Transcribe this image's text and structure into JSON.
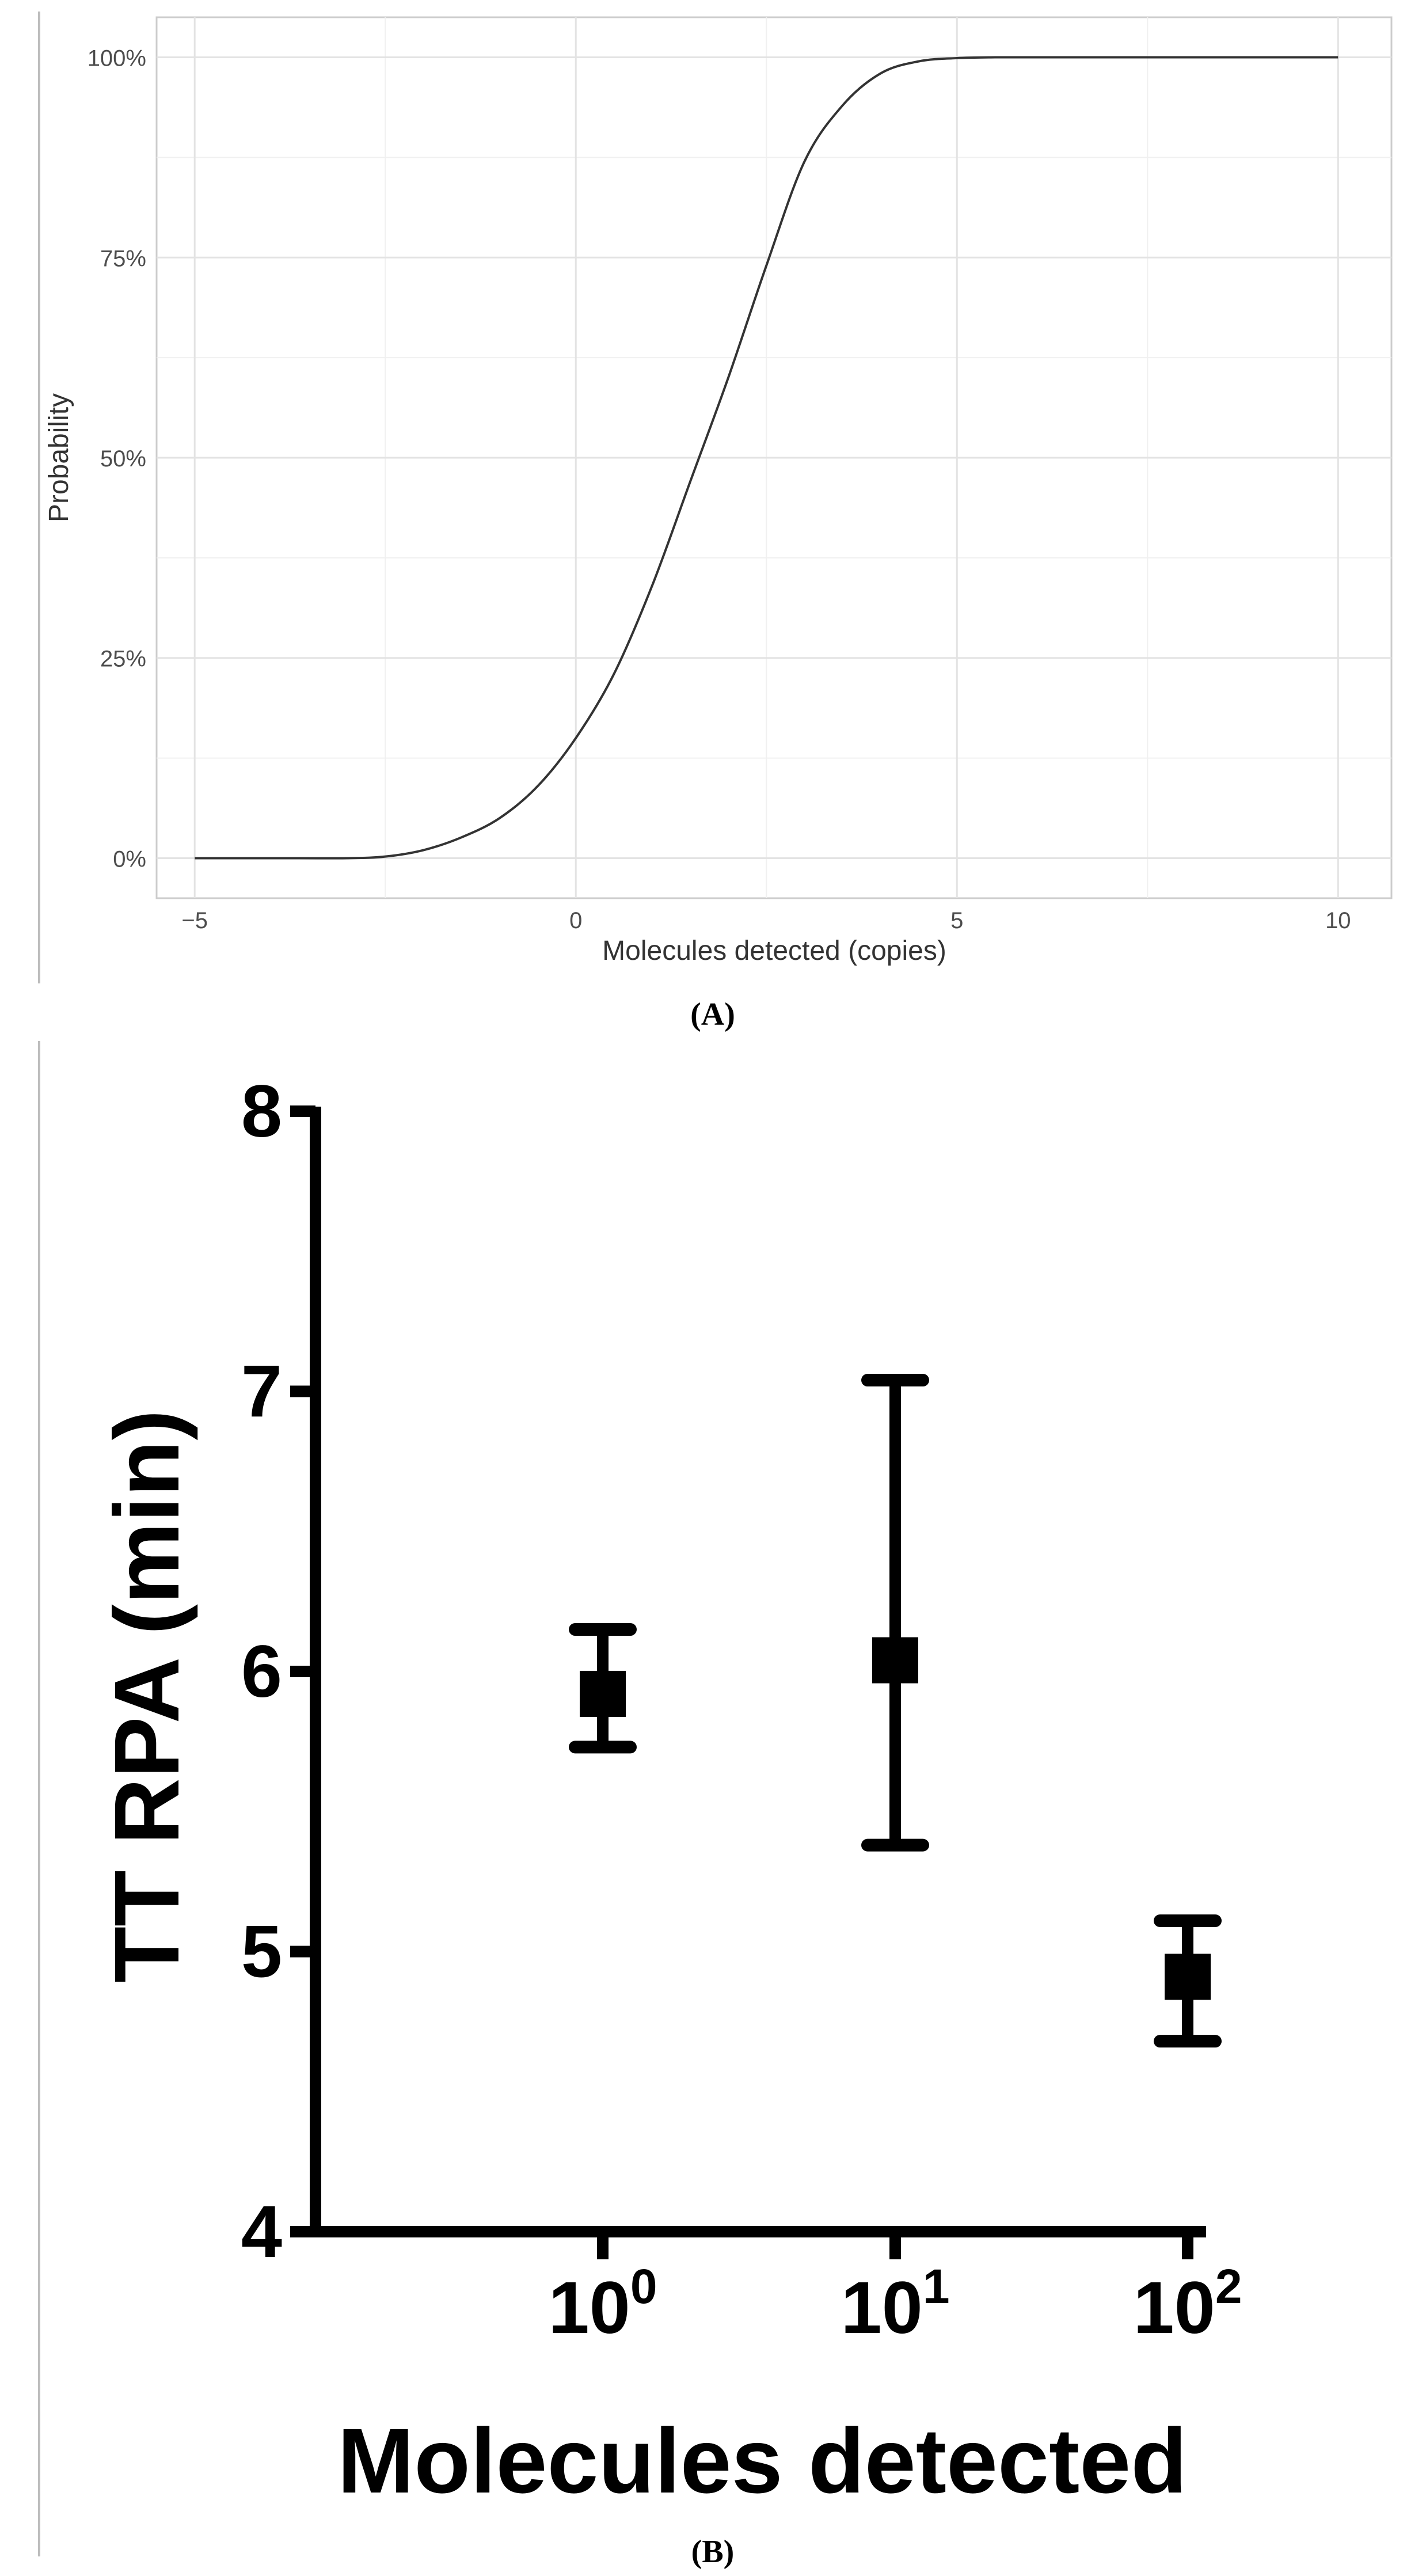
{
  "chart_data": [
    {
      "type": "line",
      "panel_label": "(A)",
      "xlabel": "Molecules detected (copies)",
      "ylabel": "Probability",
      "xlim": [
        -5.5,
        10.7
      ],
      "ylim": [
        -0.05,
        1.05
      ],
      "x_ticks": [
        -5,
        0,
        5,
        10
      ],
      "x_tick_labels": [
        "−5",
        "0",
        "5",
        "10"
      ],
      "y_ticks": [
        0,
        0.25,
        0.5,
        0.75,
        1.0
      ],
      "y_tick_labels": [
        "0%",
        "25%",
        "50%",
        "75%",
        "100%"
      ],
      "grid": true,
      "series": [
        {
          "x": [
            -5,
            -4,
            -3,
            -2.5,
            -2,
            -1.5,
            -1,
            -0.5,
            0,
            0.5,
            1,
            1.5,
            2,
            2.5,
            3,
            3.5,
            4,
            4.5,
            5,
            5.5,
            6,
            7,
            8,
            9,
            10
          ],
          "y": [
            0.0,
            0.0,
            0.0,
            0.002,
            0.01,
            0.026,
            0.05,
            0.09,
            0.15,
            0.23,
            0.34,
            0.47,
            0.6,
            0.74,
            0.87,
            0.94,
            0.98,
            0.995,
            0.999,
            1.0,
            1.0,
            1.0,
            1.0,
            1.0,
            1.0
          ]
        }
      ]
    },
    {
      "type": "scatter",
      "panel_label": "(B)",
      "xlabel": "Molecules detected",
      "ylabel": "TT RPA (min)",
      "x_scale": "log",
      "xlim": [
        0.1,
        150
      ],
      "ylim": [
        4,
        8
      ],
      "y_ticks": [
        4,
        5,
        6,
        7,
        8
      ],
      "y_tick_labels": [
        "4",
        "5",
        "6",
        "7",
        "8"
      ],
      "x_ticks": [
        1,
        10,
        100
      ],
      "x_tick_base": [
        "10",
        "10",
        "10"
      ],
      "x_tick_exp": [
        "0",
        "1",
        "2"
      ],
      "points": [
        {
          "x": 1,
          "y": 5.92,
          "low": 5.73,
          "high": 6.15
        },
        {
          "x": 10,
          "y": 6.04,
          "low": 5.38,
          "high": 7.04
        },
        {
          "x": 100,
          "y": 4.91,
          "low": 4.68,
          "high": 5.11
        }
      ]
    }
  ]
}
